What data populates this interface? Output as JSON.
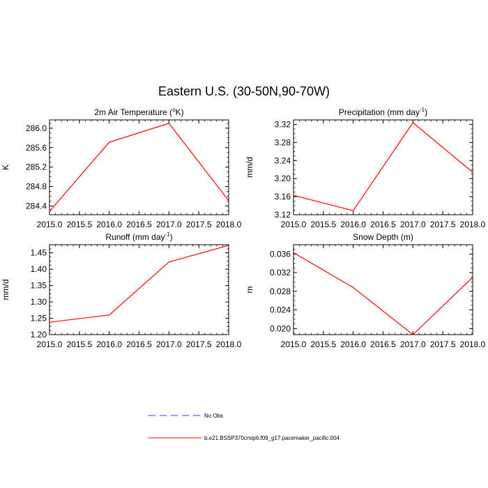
{
  "figure_title": "Eastern U.S. (30-50N,90-70W)",
  "chart_data": [
    {
      "type": "line",
      "title": "2m Air Temperature (",
      "title_sup": "o",
      "title_end": "K)",
      "ylabel": "K",
      "x": [
        2015.0,
        2016.0,
        2017.0,
        2018.0
      ],
      "xlim": [
        2015.0,
        2018.0
      ],
      "ylim": [
        284.22,
        286.17
      ],
      "x_ticks": [
        "2015.0",
        "2015.5",
        "2016.0",
        "2016.5",
        "2017.0",
        "2017.5",
        "2018.0"
      ],
      "y_ticks": [
        "284.4",
        "284.8",
        "285.2",
        "285.6",
        "286.0"
      ],
      "series": [
        {
          "name": "b.e21.BSSP370cmip6.f09_g17.pacemaker_pacific.004",
          "color": "#ff0000",
          "values": [
            284.29,
            285.71,
            286.1,
            284.51
          ]
        }
      ]
    },
    {
      "type": "line",
      "title": "Precipitation (mm day",
      "title_sup": "-1",
      "title_end": ")",
      "ylabel": "mm/d",
      "x": [
        2015.0,
        2016.0,
        2017.0,
        2018.0
      ],
      "xlim": [
        2015.0,
        2018.0
      ],
      "ylim": [
        3.12,
        3.33
      ],
      "x_ticks": [
        "2015.0",
        "2015.5",
        "2016.0",
        "2016.5",
        "2017.0",
        "2017.5",
        "2018.0"
      ],
      "y_ticks": [
        "3.12",
        "3.16",
        "3.20",
        "3.24",
        "3.28",
        "3.32"
      ],
      "series": [
        {
          "name": "b.e21.BSSP370cmip6.f09_g17.pacemaker_pacific.004",
          "color": "#ff0000",
          "values": [
            3.163,
            3.129,
            3.324,
            3.214
          ]
        }
      ]
    },
    {
      "type": "line",
      "title": "Runoff (mm day",
      "title_sup": "-1",
      "title_end": ")",
      "ylabel": "mm/d",
      "x": [
        2015.0,
        2016.0,
        2017.0,
        2018.0
      ],
      "xlim": [
        2015.0,
        2018.0
      ],
      "ylim": [
        1.2,
        1.475
      ],
      "x_ticks": [
        "2015.0",
        "2015.5",
        "2016.0",
        "2016.5",
        "2017.0",
        "2017.5",
        "2018.0"
      ],
      "y_ticks": [
        "1.20",
        "1.25",
        "1.30",
        "1.35",
        "1.40",
        "1.45"
      ],
      "series": [
        {
          "name": "b.e21.BSSP370cmip6.f09_g17.pacemaker_pacific.004",
          "color": "#ff0000",
          "values": [
            1.238,
            1.26,
            1.422,
            1.473
          ]
        }
      ]
    },
    {
      "type": "line",
      "title": "Snow Depth (m)",
      "title_sup": "",
      "title_end": "",
      "ylabel": "m",
      "x": [
        2015.0,
        2016.0,
        2017.0,
        2018.0
      ],
      "xlim": [
        2015.0,
        2018.0
      ],
      "ylim": [
        0.0187,
        0.038
      ],
      "x_ticks": [
        "2015.0",
        "2015.5",
        "2016.0",
        "2016.5",
        "2017.0",
        "2017.5",
        "2018.0"
      ],
      "y_ticks": [
        "0.020",
        "0.024",
        "0.028",
        "0.032",
        "0.036"
      ],
      "series": [
        {
          "name": "b.e21.BSSP370cmip6.f09_g17.pacemaker_pacific.004",
          "color": "#ff0000",
          "values": [
            0.0363,
            0.0288,
            0.0187,
            0.031
          ]
        }
      ]
    }
  ],
  "legend": [
    {
      "label": "No Obs",
      "color": "#3a3aff",
      "dash": "dashed"
    },
    {
      "label": "b.e21.BSSP370cmip6.f09_g17.pacemaker_pacific.004",
      "color": "#ff0000",
      "dash": "solid"
    }
  ]
}
